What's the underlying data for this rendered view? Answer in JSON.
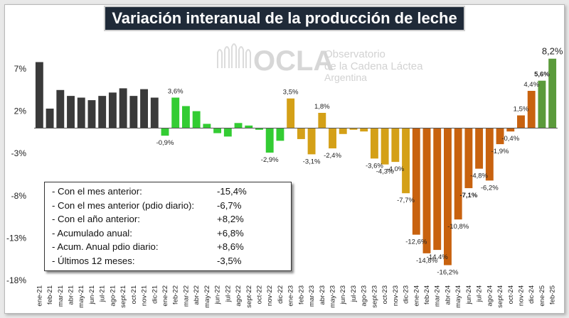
{
  "title": "Variación interanual de la producción de leche",
  "logo": {
    "text": "OCLA",
    "line1": "Observatorio",
    "line2": "de la Cadena Láctea",
    "line3": "Argentina"
  },
  "summary": [
    {
      "label": "- Con el mes anterior:",
      "value": "-15,4%"
    },
    {
      "label": "- Con el mes anterior (pdio diario):",
      "value": "-6,7%"
    },
    {
      "label": "- Con el año anterior:",
      "value": "+8,2%"
    },
    {
      "label": "- Acumulado anual:",
      "value": "+6,8%"
    },
    {
      "label": "- Acum. Anual pdio diario:",
      "value": "+8,6%"
    },
    {
      "label": "- Últimos 12 meses:",
      "value": "-3,5%"
    }
  ],
  "colors": {
    "2021": "#3a3a3a",
    "2022": "#33cc33",
    "2023": "#d4a017",
    "2024": "#c8620f",
    "2025": "#5a9a3a"
  },
  "chart_data": {
    "type": "bar",
    "title": "Variación interanual de la producción de leche",
    "ylim": [
      -18,
      9
    ],
    "yticks": [
      7,
      2,
      -3,
      -8,
      -13,
      -18
    ],
    "ytick_labels": [
      "7%",
      "2%",
      "-3%",
      "-8%",
      "-13%",
      "-18%"
    ],
    "grid": false,
    "categories": [
      "ene-21",
      "feb-21",
      "mar-21",
      "abr-21",
      "may-21",
      "jun-21",
      "jul-21",
      "ago-21",
      "sept-21",
      "oct-21",
      "nov-21",
      "dic-21",
      "ene-22",
      "feb-22",
      "mar-22",
      "abr-22",
      "may-22",
      "jun-22",
      "jul-22",
      "ago-22",
      "sept-22",
      "oct-22",
      "nov-22",
      "dic-22",
      "ene-23",
      "feb-23",
      "mar-23",
      "abr-23",
      "may-23",
      "jun-23",
      "jul-23",
      "ago-23",
      "sept-23",
      "oct-23",
      "nov-23",
      "dic-23",
      "ene-24",
      "feb-24",
      "mar-24",
      "abr-24",
      "may-24",
      "jun-24",
      "jul-24",
      "ago-24",
      "sept-24",
      "oct-24",
      "nov-24",
      "dic-24",
      "ene-25",
      "feb-25"
    ],
    "values": [
      7.8,
      2.3,
      4.5,
      3.8,
      3.6,
      3.3,
      3.8,
      4.2,
      4.7,
      3.8,
      4.6,
      3.6,
      -0.9,
      3.6,
      2.6,
      2.0,
      0.5,
      -0.6,
      -1.0,
      0.6,
      0.3,
      -0.2,
      -2.9,
      -1.5,
      3.5,
      -1.3,
      -3.1,
      1.8,
      -2.4,
      -0.7,
      -0.2,
      -0.4,
      -3.6,
      -4.3,
      -4.0,
      -7.7,
      -12.6,
      -14.8,
      -14.4,
      -16.2,
      -10.8,
      -7.1,
      -4.8,
      -6.2,
      -1.9,
      -0.4,
      1.5,
      4.4,
      5.6,
      8.2
    ],
    "data_labels": {
      "12": "-0,9%",
      "13": "3,6%",
      "22": "-2,9%",
      "24": "3,5%",
      "26": "-3,1%",
      "27": "1,8%",
      "28": "-2,4%",
      "32": "-3,6%",
      "33": "-4,3%",
      "34": "-4,0%",
      "35": "-7,7%",
      "36": "-12,6%",
      "37": "-14,8%",
      "38": "-14,4%",
      "39": "-16,2%",
      "40": "-10,8%",
      "41": "-7,1%",
      "42": "-4,8%",
      "43": "-6,2%",
      "44": "-1,9%",
      "45": "-0,4%",
      "46": "1,5%",
      "47": "4,4%",
      "48": "5,6%",
      "49": "8,2%"
    }
  }
}
